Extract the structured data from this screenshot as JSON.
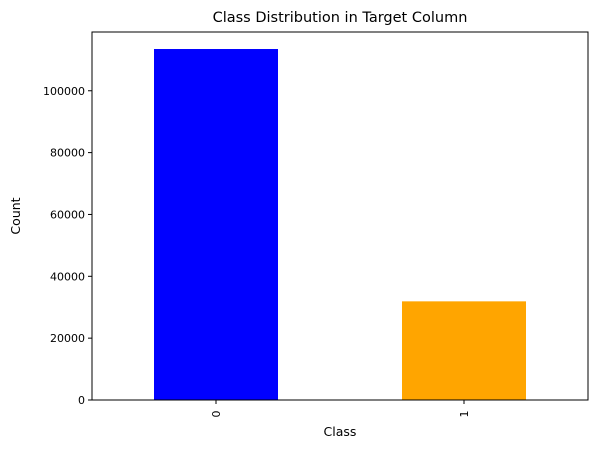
{
  "chart_data": {
    "type": "bar",
    "title": "Class Distribution in Target Column",
    "xlabel": "Class",
    "ylabel": "Count",
    "categories": [
      "0",
      "1"
    ],
    "values": [
      113500,
      31900
    ],
    "colors": [
      "#0000ff",
      "#ffa500"
    ],
    "ylim": [
      0,
      119000
    ],
    "yticks": [
      0,
      20000,
      40000,
      60000,
      80000,
      100000
    ],
    "ytick_labels": [
      "0",
      "20000",
      "40000",
      "60000",
      "80000",
      "100000"
    ],
    "xtick_rotation": "vertical",
    "grid": false,
    "legend": false
  }
}
